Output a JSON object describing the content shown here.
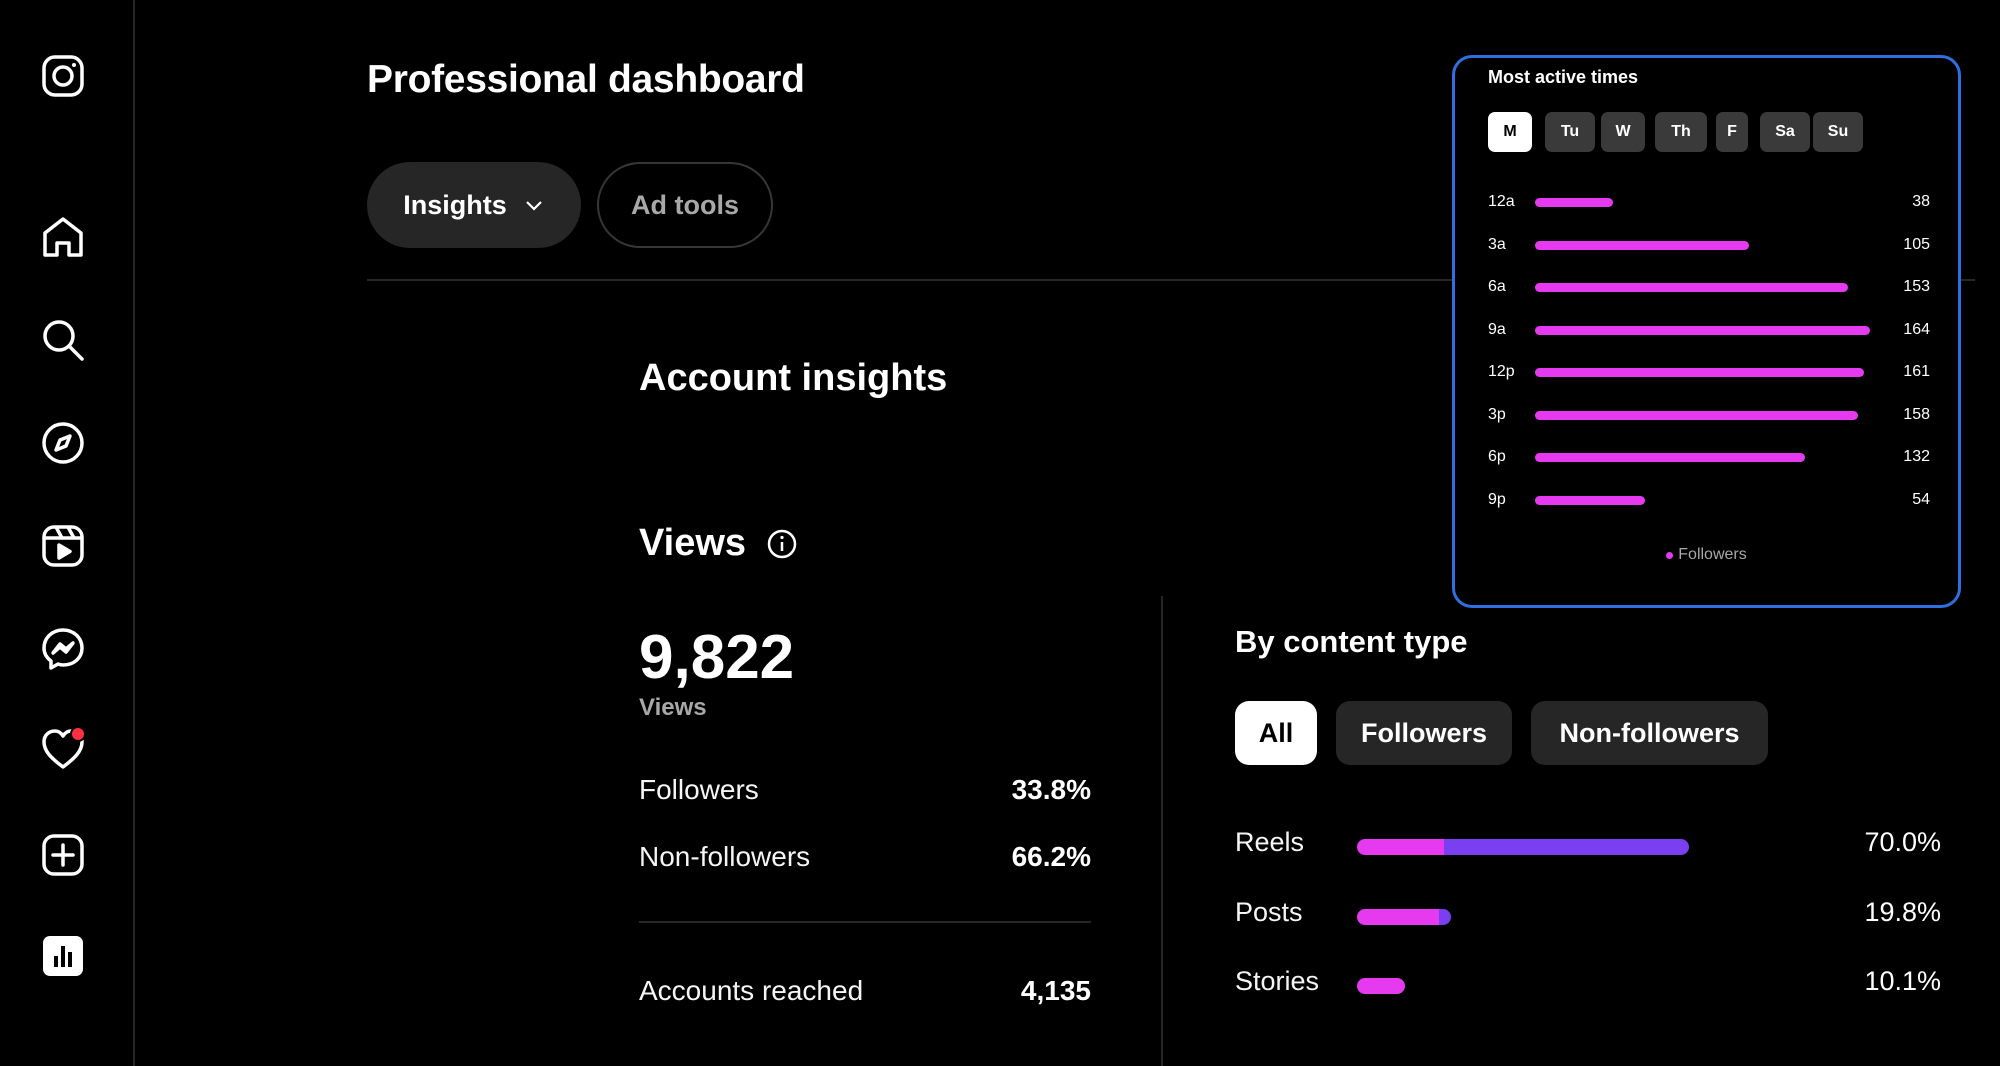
{
  "header": {
    "title": "Professional dashboard",
    "tabs": [
      {
        "label": "Insights",
        "active": true
      },
      {
        "label": "Ad tools",
        "active": false
      }
    ]
  },
  "sidebar": {
    "items": [
      {
        "icon": "instagram-logo-icon"
      },
      {
        "icon": "home-icon"
      },
      {
        "icon": "search-icon"
      },
      {
        "icon": "explore-icon"
      },
      {
        "icon": "reels-icon"
      },
      {
        "icon": "messenger-icon"
      },
      {
        "icon": "notifications-heart-icon",
        "badge": true
      },
      {
        "icon": "create-icon"
      },
      {
        "icon": "dashboard-icon"
      }
    ]
  },
  "account_insights": {
    "title": "Account insights",
    "views": {
      "title": "Views",
      "total": "9,822",
      "total_label": "Views",
      "followers_label": "Followers",
      "followers_value": "33.8%",
      "nonfollowers_label": "Non-followers",
      "nonfollowers_value": "66.2%",
      "accounts_reached_label": "Accounts reached",
      "accounts_reached_value": "4,135"
    }
  },
  "by_content_type": {
    "title": "By content type",
    "filters": [
      "All",
      "Followers",
      "Non-followers"
    ],
    "active_filter": "All",
    "rows": [
      {
        "label": "Reels",
        "value": "70.0%",
        "share": 0.7,
        "followers_share": 0.12
      },
      {
        "label": "Posts",
        "value": "19.8%",
        "share": 0.198,
        "followers_share": 0.11
      },
      {
        "label": "Stories",
        "value": "10.1%",
        "share": 0.101,
        "followers_share": 0.1
      }
    ]
  },
  "most_active_times": {
    "title": "Most active times",
    "days": [
      "M",
      "Tu",
      "W",
      "Th",
      "F",
      "Sa",
      "Su"
    ],
    "active_day": "M",
    "legend": "Followers",
    "hours": [
      {
        "label": "12a",
        "value": "38",
        "num": 38
      },
      {
        "label": "3a",
        "value": "105",
        "num": 105
      },
      {
        "label": "6a",
        "value": "153",
        "num": 153
      },
      {
        "label": "9a",
        "value": "164",
        "num": 164
      },
      {
        "label": "12p",
        "value": "161",
        "num": 161
      },
      {
        "label": "3p",
        "value": "158",
        "num": 158
      },
      {
        "label": "6p",
        "value": "132",
        "num": 132
      },
      {
        "label": "9p",
        "value": "54",
        "num": 54
      }
    ]
  },
  "colors": {
    "followers": "#e63af0",
    "non_followers": "#7b3ff2",
    "panel_border": "#2f6fe0",
    "notification_dot": "#ff3040"
  }
}
